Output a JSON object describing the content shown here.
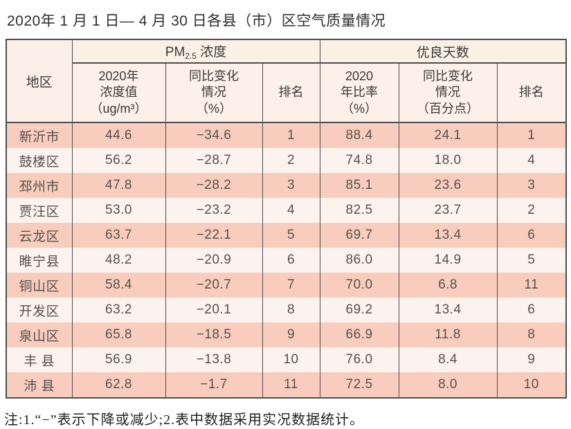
{
  "page_title": "2020年 1 月 1 日— 4 月 30 日各县（市）区空气质量情况",
  "table": {
    "header": {
      "region": "地区",
      "pm_group": {
        "prefix": "PM",
        "sub": "2.5",
        "suffix": " 浓度"
      },
      "good_group": "优良天数",
      "pm_value_lines": [
        "2020年",
        "浓度值",
        "（ug/m³）"
      ],
      "pm_change_lines": [
        "同比变化",
        "情况",
        "（%）"
      ],
      "pm_rank": "排名",
      "good_rate_lines": [
        "2020",
        "年比率",
        "（%）"
      ],
      "good_change_lines": [
        "同比变化",
        "情况",
        "（百分点）"
      ],
      "good_rank": "排名"
    },
    "rows": [
      {
        "region": "新沂市",
        "pm_value": "44.6",
        "pm_change": "−34.6",
        "pm_rank": "1",
        "good_rate": "88.4",
        "good_change": "24.1",
        "good_rank": "1"
      },
      {
        "region": "鼓楼区",
        "pm_value": "56.2",
        "pm_change": "−28.7",
        "pm_rank": "2",
        "good_rate": "74.8",
        "good_change": "18.0",
        "good_rank": "4"
      },
      {
        "region": "邳州市",
        "pm_value": "47.8",
        "pm_change": "−28.2",
        "pm_rank": "3",
        "good_rate": "85.1",
        "good_change": "23.6",
        "good_rank": "3"
      },
      {
        "region": "贾汪区",
        "pm_value": "53.0",
        "pm_change": "−23.2",
        "pm_rank": "4",
        "good_rate": "82.5",
        "good_change": "23.7",
        "good_rank": "2"
      },
      {
        "region": "云龙区",
        "pm_value": "63.7",
        "pm_change": "−22.1",
        "pm_rank": "5",
        "good_rate": "69.7",
        "good_change": "13.4",
        "good_rank": "6"
      },
      {
        "region": "睢宁县",
        "pm_value": "48.2",
        "pm_change": "−20.9",
        "pm_rank": "6",
        "good_rate": "86.0",
        "good_change": "14.9",
        "good_rank": "5"
      },
      {
        "region": "铜山区",
        "pm_value": "58.4",
        "pm_change": "−20.7",
        "pm_rank": "7",
        "good_rate": "70.0",
        "good_change": "6.8",
        "good_rank": "11"
      },
      {
        "region": "开发区",
        "pm_value": "63.2",
        "pm_change": "−20.1",
        "pm_rank": "8",
        "good_rate": "69.2",
        "good_change": "13.4",
        "good_rank": "6"
      },
      {
        "region": "泉山区",
        "pm_value": "65.8",
        "pm_change": "−18.5",
        "pm_rank": "9",
        "good_rate": "66.9",
        "good_change": "11.8",
        "good_rank": "8"
      },
      {
        "region": "丰 县",
        "pm_value": "56.9",
        "pm_change": "−13.8",
        "pm_rank": "10",
        "good_rate": "76.0",
        "good_change": "8.4",
        "good_rank": "9"
      },
      {
        "region": "沛 县",
        "pm_value": "62.8",
        "pm_change": "−1.7",
        "pm_rank": "11",
        "good_rate": "72.5",
        "good_change": "8.0",
        "good_rank": "10"
      }
    ]
  },
  "note": "注:1.“−”表示下降或减少;2.表中数据采用实况数据统计。",
  "colors": {
    "row_odd": "#f8cdbe",
    "row_even": "#fdf3ee",
    "header_group_bg": "#faf0e4",
    "header_sub_bg": "#fcf0e8",
    "border": "#4d4d4d"
  }
}
